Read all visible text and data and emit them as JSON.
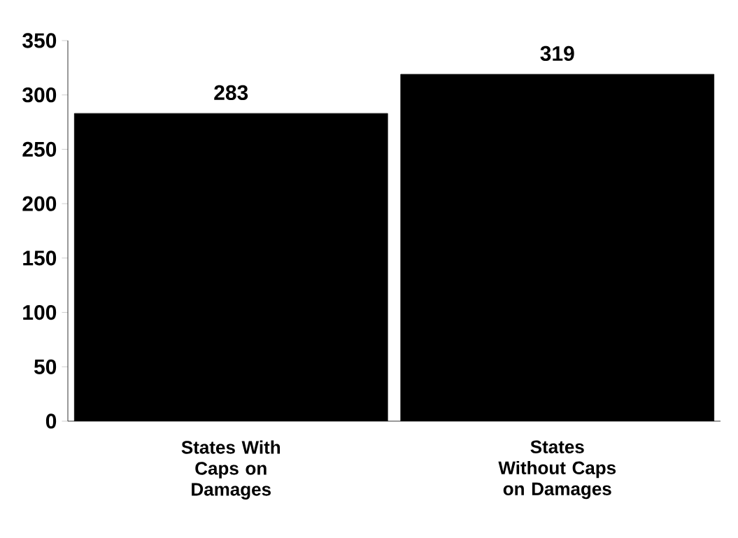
{
  "chart_data": {
    "type": "bar",
    "categories": [
      "States With Caps on Damages",
      "States Without Caps on Damages"
    ],
    "values": [
      283,
      319
    ],
    "color": "#000000",
    "ylim": [
      0,
      350
    ],
    "yticks": [
      0,
      50,
      100,
      150,
      200,
      250,
      300,
      350
    ],
    "data_labels": true
  }
}
